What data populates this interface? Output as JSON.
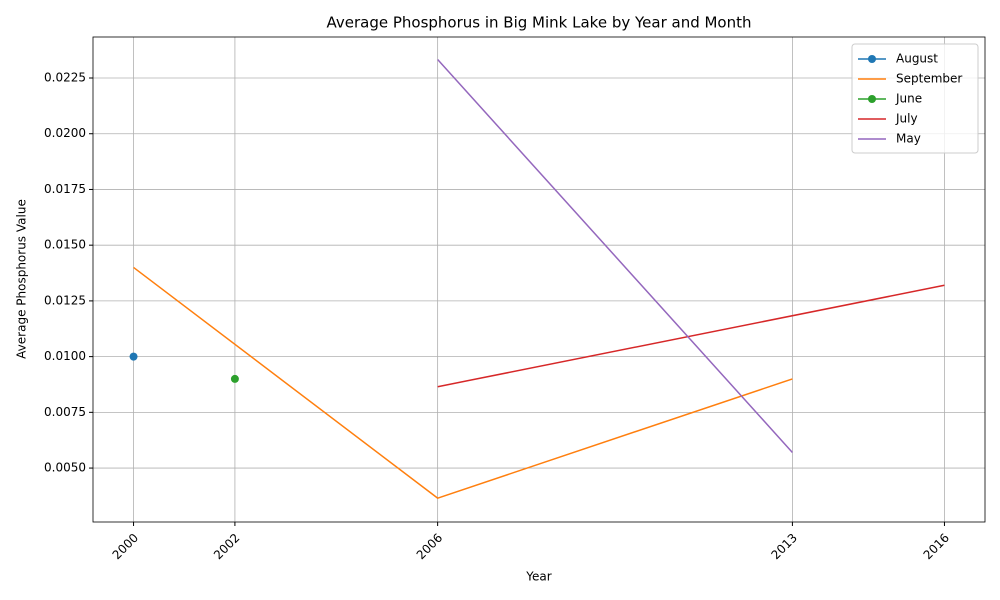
{
  "chart_data": {
    "type": "line",
    "title": "Average Phosphorus in Big Mink Lake by Year and Month",
    "xlabel": "Year",
    "ylabel": "Average Phosphorus Value",
    "series": [
      {
        "name": "August",
        "color": "#1f77b4",
        "marker": "o",
        "x": [
          2000
        ],
        "values": [
          0.01
        ]
      },
      {
        "name": "September",
        "color": "#ff7f0e",
        "x": [
          2000,
          2006,
          2013
        ],
        "values": [
          0.014,
          0.00365,
          0.009
        ]
      },
      {
        "name": "June",
        "color": "#2ca02c",
        "marker": "o",
        "x": [
          2002
        ],
        "values": [
          0.009
        ]
      },
      {
        "name": "July",
        "color": "#d62728",
        "x": [
          2006,
          2016
        ],
        "values": [
          0.00865,
          0.0132
        ]
      },
      {
        "name": "May",
        "color": "#9467bd",
        "x": [
          2006,
          2013
        ],
        "values": [
          0.02333,
          0.0057
        ]
      }
    ],
    "xlim": [
      1999.2,
      2016.8
    ],
    "xticks": [
      2000,
      2002,
      2006,
      2013,
      2016
    ],
    "ylim": [
      0.00258,
      0.02434
    ],
    "yticks": [
      {
        "value": 0.005,
        "label": "0.0050"
      },
      {
        "value": 0.0075,
        "label": "0.0075"
      },
      {
        "value": 0.01,
        "label": "0.0100"
      },
      {
        "value": 0.0125,
        "label": "0.0125"
      },
      {
        "value": 0.015,
        "label": "0.0150"
      },
      {
        "value": 0.0175,
        "label": "0.0175"
      },
      {
        "value": 0.02,
        "label": "0.0200"
      },
      {
        "value": 0.0225,
        "label": "0.0225"
      }
    ],
    "grid": true,
    "legend": "upper right"
  }
}
